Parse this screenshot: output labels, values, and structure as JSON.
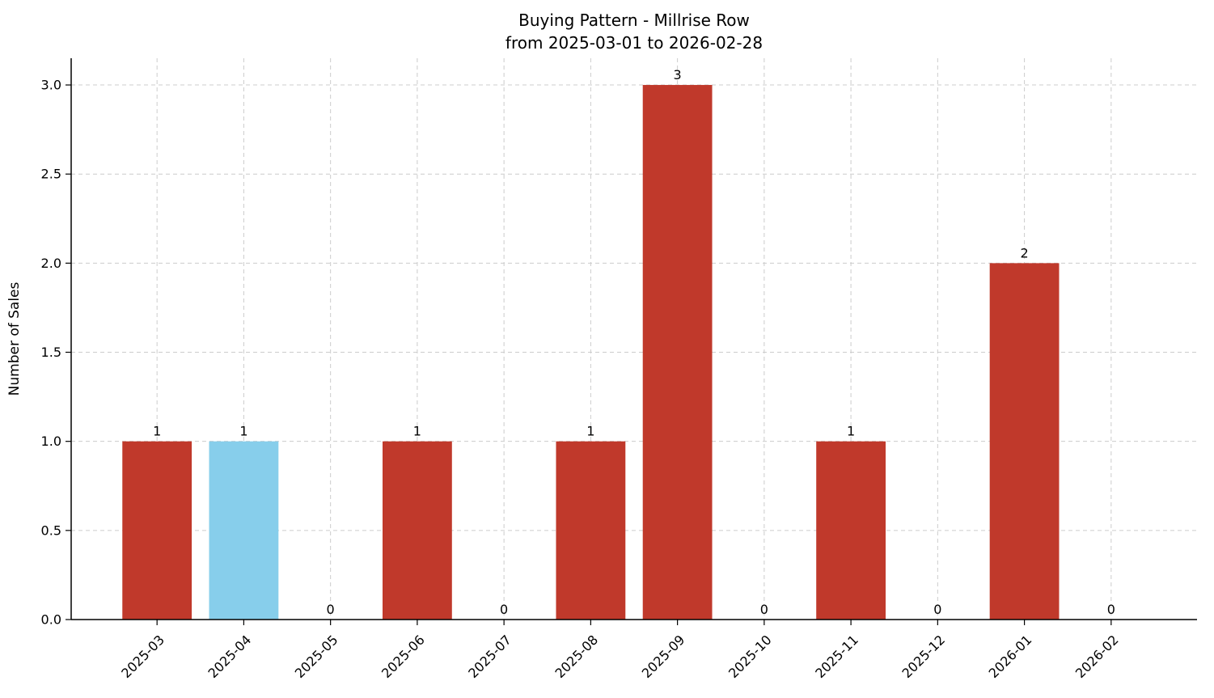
{
  "chart_data": {
    "type": "bar",
    "title": "Buying Pattern - Millrise Row",
    "subtitle": "from 2025-03-01 to 2026-02-28",
    "xlabel": "",
    "ylabel": "Number of Sales",
    "categories": [
      "2025-03",
      "2025-04",
      "2025-05",
      "2025-06",
      "2025-07",
      "2025-08",
      "2025-09",
      "2025-10",
      "2025-11",
      "2025-12",
      "2026-01",
      "2026-02"
    ],
    "values": [
      1,
      1,
      0,
      1,
      0,
      1,
      3,
      0,
      1,
      0,
      2,
      0
    ],
    "yticks": [
      0.0,
      0.5,
      1.0,
      1.5,
      2.0,
      2.5,
      3.0
    ],
    "ytick_labels": [
      "0.0",
      "0.5",
      "1.0",
      "1.5",
      "2.0",
      "2.5",
      "3.0"
    ],
    "ylim": [
      0,
      3.15
    ],
    "grid": true,
    "legend_position": "none",
    "highlight_index": 1,
    "bar_width_fraction": 0.8,
    "x_label_rotation_deg": 45,
    "colors": {
      "bar": "#c0392b",
      "highlight_bar": "#87ceeb",
      "grid": "#cccccc",
      "axis": "#000000",
      "background": "#ffffff",
      "text": "#000000"
    }
  }
}
